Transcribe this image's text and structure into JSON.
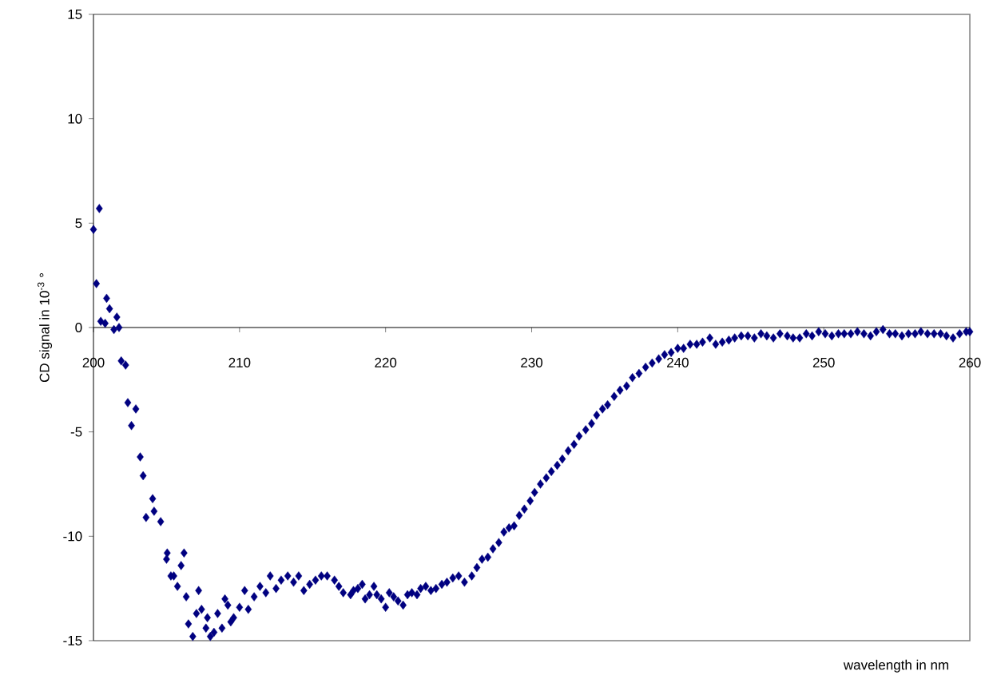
{
  "chart_data": {
    "type": "scatter",
    "xlabel": "wavelength in nm",
    "ylabel": "CD signal in 10$^{-3}$ °",
    "marker": "diamond",
    "grid": false,
    "xlim": [
      200,
      260
    ],
    "ylim": [
      -15,
      15
    ],
    "xticks": [
      200,
      210,
      220,
      230,
      240,
      250,
      260
    ],
    "yticks": [
      -15,
      -10,
      -5,
      0,
      5,
      10,
      15
    ],
    "series": [
      {
        "color": "#000080",
        "x": [
          200.0,
          200.4,
          200.2,
          200.5,
          200.8,
          200.9,
          201.1,
          201.4,
          201.6,
          201.75,
          201.9,
          202.2,
          202.35,
          202.6,
          202.9,
          203.2,
          203.4,
          204.05,
          203.6,
          204.15,
          204.6,
          205.0,
          205.05,
          205.3,
          205.5,
          205.75,
          206.0,
          206.2,
          206.35,
          206.5,
          206.8,
          207.05,
          207.2,
          207.4,
          207.7,
          207.8,
          208.0,
          208.25,
          208.5,
          208.8,
          209.0,
          209.2,
          209.4,
          209.6,
          210.0,
          210.35,
          210.6,
          211.0,
          211.4,
          211.8,
          212.1,
          212.5,
          212.85,
          213.3,
          213.7,
          214.05,
          214.4,
          214.8,
          215.2,
          215.6,
          216.0,
          216.5,
          216.8,
          217.1,
          217.6,
          217.8,
          218.1,
          218.4,
          218.6,
          218.9,
          219.2,
          219.4,
          219.7,
          220.0,
          220.25,
          220.55,
          220.85,
          221.2,
          221.5,
          221.8,
          222.15,
          222.4,
          222.75,
          223.1,
          223.45,
          223.85,
          224.2,
          224.6,
          225.0,
          225.4,
          225.9,
          226.25,
          226.6,
          227.0,
          227.35,
          227.75,
          228.1,
          228.45,
          228.8,
          229.15,
          229.5,
          229.9,
          230.2,
          230.6,
          231.0,
          231.35,
          231.75,
          232.1,
          232.5,
          232.9,
          233.25,
          233.7,
          234.1,
          234.45,
          234.85,
          235.2,
          235.65,
          236.05,
          236.5,
          236.9,
          237.35,
          237.8,
          238.25,
          238.7,
          239.1,
          239.55,
          240.0,
          240.4,
          240.85,
          241.3,
          241.7,
          242.2,
          242.6,
          243.05,
          243.5,
          243.9,
          244.35,
          244.8,
          245.25,
          245.7,
          246.1,
          246.55,
          247.0,
          247.5,
          247.9,
          248.35,
          248.8,
          249.2,
          249.65,
          250.1,
          250.55,
          251.0,
          251.4,
          251.85,
          252.3,
          252.75,
          253.2,
          253.6,
          254.05,
          254.5,
          254.9,
          255.35,
          255.8,
          256.25,
          256.65,
          257.1,
          257.55,
          258.0,
          258.4,
          258.85,
          259.3,
          259.75,
          260.0
        ],
        "values": [
          4.7,
          5.7,
          2.1,
          0.3,
          0.2,
          1.4,
          0.9,
          -0.1,
          0.5,
          0.0,
          -1.6,
          -1.8,
          -3.6,
          -4.7,
          -3.9,
          -6.2,
          -7.1,
          -8.2,
          -9.1,
          -8.8,
          -9.3,
          -11.1,
          -10.8,
          -11.9,
          -11.9,
          -12.4,
          -11.4,
          -10.8,
          -12.9,
          -14.2,
          -14.8,
          -13.7,
          -12.6,
          -13.5,
          -14.4,
          -13.9,
          -14.8,
          -14.6,
          -13.7,
          -14.4,
          -13.0,
          -13.3,
          -14.1,
          -13.9,
          -13.4,
          -12.6,
          -13.5,
          -12.9,
          -12.4,
          -12.7,
          -11.9,
          -12.5,
          -12.1,
          -11.9,
          -12.2,
          -11.9,
          -12.6,
          -12.3,
          -12.1,
          -11.9,
          -11.9,
          -12.1,
          -12.4,
          -12.7,
          -12.8,
          -12.6,
          -12.5,
          -12.3,
          -13.0,
          -12.8,
          -12.4,
          -12.8,
          -13.0,
          -13.4,
          -12.7,
          -12.9,
          -13.1,
          -13.3,
          -12.8,
          -12.7,
          -12.8,
          -12.5,
          -12.4,
          -12.6,
          -12.5,
          -12.3,
          -12.2,
          -12.0,
          -11.9,
          -12.2,
          -11.9,
          -11.5,
          -11.1,
          -11.0,
          -10.6,
          -10.3,
          -9.8,
          -9.6,
          -9.5,
          -9.0,
          -8.7,
          -8.3,
          -7.9,
          -7.5,
          -7.2,
          -6.9,
          -6.6,
          -6.3,
          -5.9,
          -5.6,
          -5.2,
          -4.9,
          -4.6,
          -4.2,
          -3.9,
          -3.7,
          -3.3,
          -3.0,
          -2.8,
          -2.4,
          -2.2,
          -1.9,
          -1.7,
          -1.5,
          -1.3,
          -1.2,
          -1.0,
          -1.0,
          -0.8,
          -0.8,
          -0.7,
          -0.5,
          -0.8,
          -0.7,
          -0.6,
          -0.5,
          -0.4,
          -0.4,
          -0.5,
          -0.3,
          -0.4,
          -0.5,
          -0.3,
          -0.4,
          -0.5,
          -0.5,
          -0.3,
          -0.4,
          -0.2,
          -0.3,
          -0.4,
          -0.3,
          -0.3,
          -0.3,
          -0.2,
          -0.3,
          -0.4,
          -0.2,
          -0.1,
          -0.3,
          -0.3,
          -0.4,
          -0.3,
          -0.3,
          -0.2,
          -0.3,
          -0.3,
          -0.3,
          -0.4,
          -0.5,
          -0.3,
          -0.2,
          -0.2
        ]
      }
    ]
  }
}
